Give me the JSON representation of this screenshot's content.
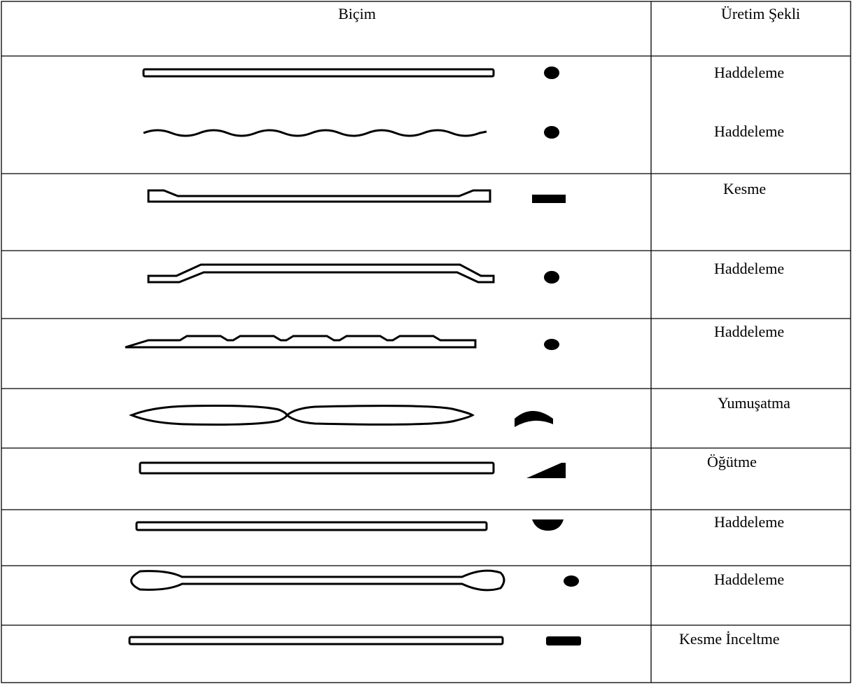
{
  "table": {
    "header": [
      "Biçim",
      "Üretim Şekli"
    ],
    "rows": [
      [
        "Haddeleme",
        "Haddeleme"
      ],
      [
        "Kesme"
      ],
      [
        "Haddeleme"
      ],
      [
        "Haddeleme"
      ],
      [
        "Yumuşatma"
      ],
      [
        "Öğütme"
      ],
      [
        "Haddeleme"
      ],
      [
        "Haddeleme"
      ],
      [
        "Kesme İnceltme"
      ]
    ]
  }
}
